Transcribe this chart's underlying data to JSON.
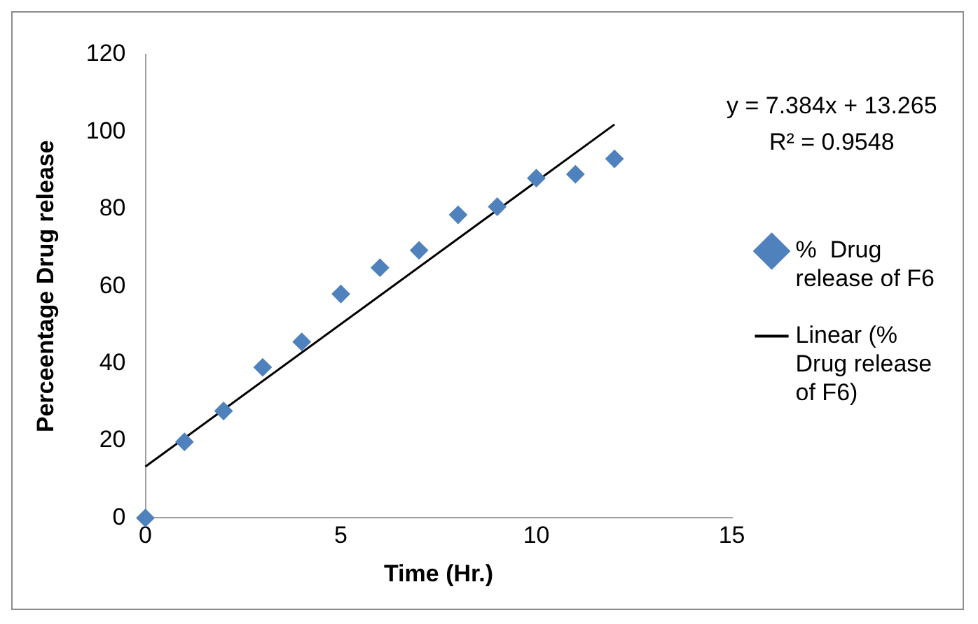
{
  "chart_data": {
    "type": "scatter",
    "xlabel": "Time (Hr.)",
    "ylabel": "Perceentage Drug release",
    "xlim": [
      0,
      15
    ],
    "xticks": [
      0,
      5,
      10,
      15
    ],
    "ylim": [
      0,
      120
    ],
    "yticks": [
      0,
      20,
      40,
      60,
      80,
      100,
      120
    ],
    "grid": false,
    "legend": "right",
    "marker": "diamond",
    "annotations": [
      "y = 7.384x + 13.265",
      "R² = 0.9548"
    ],
    "series": [
      {
        "name": "%  Drug release of F6",
        "color": "#4f81bd",
        "x": [
          0,
          1,
          2,
          3,
          4,
          5,
          6,
          7,
          8,
          9,
          10,
          11,
          12
        ],
        "values": [
          0,
          19.7,
          27.7,
          39,
          45.6,
          58,
          64.8,
          69.3,
          78.5,
          80.6,
          88,
          89,
          93
        ]
      },
      {
        "name": "Linear (%  Drug release of F6)",
        "type": "line",
        "color": "#000000",
        "line_style": "solid",
        "marker": "none",
        "x": [
          0,
          12
        ],
        "values": [
          13.3,
          101.9
        ]
      }
    ]
  }
}
